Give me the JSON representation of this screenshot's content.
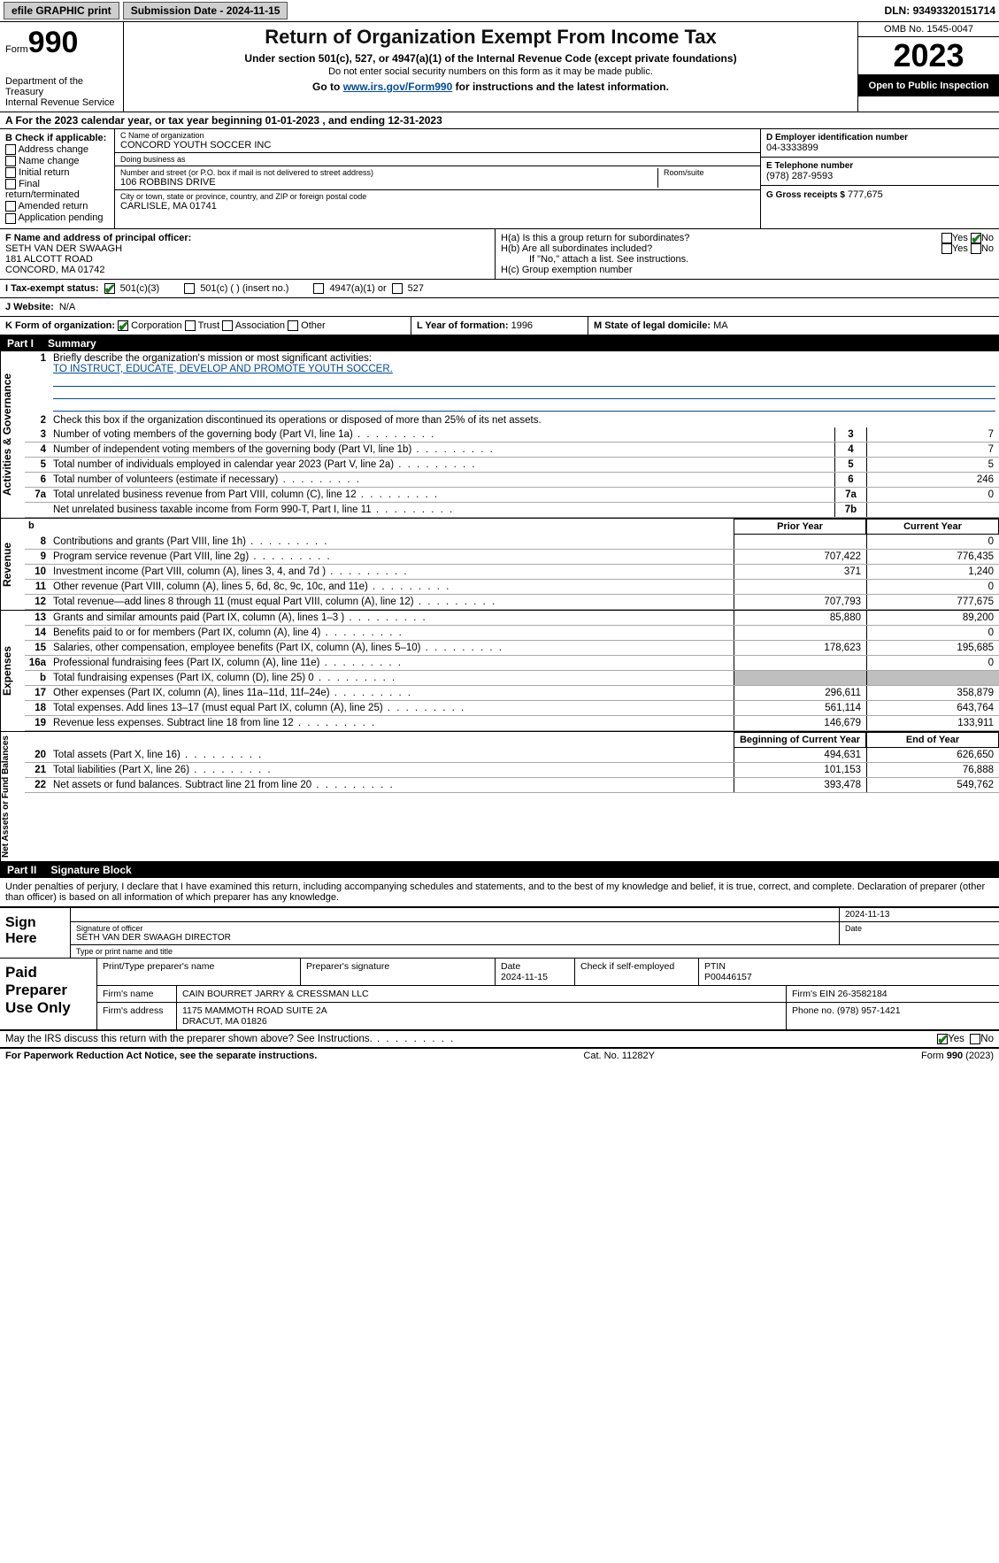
{
  "topbar": {
    "efile": "efile GRAPHIC print",
    "submission": "Submission Date - 2024-11-15",
    "dln_label": "DLN:",
    "dln": "93493320151714"
  },
  "header": {
    "form_word": "Form",
    "form_num": "990",
    "title": "Return of Organization Exempt From Income Tax",
    "sub1": "Under section 501(c), 527, or 4947(a)(1) of the Internal Revenue Code (except private foundations)",
    "sub2": "Do not enter social security numbers on this form as it may be made public.",
    "sub3_pre": "Go to ",
    "sub3_link": "www.irs.gov/Form990",
    "sub3_post": " for instructions and the latest information.",
    "dept": "Department of the Treasury",
    "irs": "Internal Revenue Service",
    "omb": "OMB No. 1545-0047",
    "year": "2023",
    "open": "Open to Public Inspection"
  },
  "lineA": "A For the 2023 calendar year, or tax year beginning 01-01-2023    , and ending 12-31-2023",
  "boxB": {
    "hdr": "B Check if applicable:",
    "opts": [
      "Address change",
      "Name change",
      "Initial return",
      "Final return/terminated",
      "Amended return",
      "Application pending"
    ]
  },
  "boxC": {
    "name_lbl": "C Name of organization",
    "name": "CONCORD YOUTH SOCCER INC",
    "dba_lbl": "Doing business as",
    "dba": "",
    "street_lbl": "Number and street (or P.O. box if mail is not delivered to street address)",
    "street": "106 ROBBINS DRIVE",
    "room_lbl": "Room/suite",
    "city_lbl": "City or town, state or province, country, and ZIP or foreign postal code",
    "city": "CARLISLE, MA  01741"
  },
  "boxD": {
    "lbl": "D Employer identification number",
    "val": "04-3333899"
  },
  "boxE": {
    "lbl": "E Telephone number",
    "val": "(978) 287-9593"
  },
  "boxG": {
    "lbl": "G Gross receipts $",
    "val": "777,675"
  },
  "boxF": {
    "lbl": "F  Name and address of principal officer:",
    "name": "SETH VAN DER SWAAGH",
    "addr1": "181 ALCOTT ROAD",
    "addr2": "CONCORD, MA  01742"
  },
  "boxH": {
    "a": "H(a)  Is this a group return for subordinates?",
    "b": "H(b)  Are all subordinates included?",
    "b_note": "If \"No,\" attach a list. See instructions.",
    "c": "H(c)  Group exemption number",
    "yes": "Yes",
    "no": "No"
  },
  "boxI": {
    "lbl": "I   Tax-exempt status:",
    "o1": "501(c)(3)",
    "o2": "501(c) (  ) (insert no.)",
    "o3": "4947(a)(1) or",
    "o4": "527"
  },
  "boxJ": {
    "lbl": "J   Website:",
    "val": "N/A"
  },
  "boxK": {
    "lbl": "K Form of organization:",
    "opts": [
      "Corporation",
      "Trust",
      "Association",
      "Other"
    ]
  },
  "boxL": {
    "lbl": "L Year of formation:",
    "val": "1996"
  },
  "boxM": {
    "lbl": "M State of legal domicile:",
    "val": "MA"
  },
  "part1": {
    "num": "Part I",
    "title": "Summary"
  },
  "mission": {
    "lbl": "Briefly describe the organization's mission or most significant activities:",
    "text": "TO INSTRUCT, EDUCATE, DEVELOP AND PROMOTE YOUTH SOCCER."
  },
  "line2": "Check this box      if the organization discontinued its operations or disposed of more than 25% of its net assets.",
  "gov": [
    {
      "n": "3",
      "d": "Number of voting members of the governing body (Part VI, line 1a)",
      "bn": "3",
      "v": "7"
    },
    {
      "n": "4",
      "d": "Number of independent voting members of the governing body (Part VI, line 1b)",
      "bn": "4",
      "v": "7"
    },
    {
      "n": "5",
      "d": "Total number of individuals employed in calendar year 2023 (Part V, line 2a)",
      "bn": "5",
      "v": "5"
    },
    {
      "n": "6",
      "d": "Total number of volunteers (estimate if necessary)",
      "bn": "6",
      "v": "246"
    },
    {
      "n": "7a",
      "d": "Total unrelated business revenue from Part VIII, column (C), line 12",
      "bn": "7a",
      "v": "0"
    },
    {
      "n": "",
      "d": "Net unrelated business taxable income from Form 990-T, Part I, line 11",
      "bn": "7b",
      "v": ""
    }
  ],
  "rev_hdr_b": "b",
  "col_prior": "Prior Year",
  "col_current": "Current Year",
  "col_begin": "Beginning of Current Year",
  "col_end": "End of Year",
  "revenue": [
    {
      "n": "8",
      "d": "Contributions and grants (Part VIII, line 1h)",
      "p": "",
      "c": "0"
    },
    {
      "n": "9",
      "d": "Program service revenue (Part VIII, line 2g)",
      "p": "707,422",
      "c": "776,435"
    },
    {
      "n": "10",
      "d": "Investment income (Part VIII, column (A), lines 3, 4, and 7d )",
      "p": "371",
      "c": "1,240"
    },
    {
      "n": "11",
      "d": "Other revenue (Part VIII, column (A), lines 5, 6d, 8c, 9c, 10c, and 11e)",
      "p": "",
      "c": "0"
    },
    {
      "n": "12",
      "d": "Total revenue—add lines 8 through 11 (must equal Part VIII, column (A), line 12)",
      "p": "707,793",
      "c": "777,675"
    }
  ],
  "expenses": [
    {
      "n": "13",
      "d": "Grants and similar amounts paid (Part IX, column (A), lines 1–3 )",
      "p": "85,880",
      "c": "89,200"
    },
    {
      "n": "14",
      "d": "Benefits paid to or for members (Part IX, column (A), line 4)",
      "p": "",
      "c": "0"
    },
    {
      "n": "15",
      "d": "Salaries, other compensation, employee benefits (Part IX, column (A), lines 5–10)",
      "p": "178,623",
      "c": "195,685"
    },
    {
      "n": "16a",
      "d": "Professional fundraising fees (Part IX, column (A), line 11e)",
      "p": "",
      "c": "0"
    },
    {
      "n": "b",
      "d": "Total fundraising expenses (Part IX, column (D), line 25) 0",
      "p": "shade",
      "c": "shade"
    },
    {
      "n": "17",
      "d": "Other expenses (Part IX, column (A), lines 11a–11d, 11f–24e)",
      "p": "296,611",
      "c": "358,879"
    },
    {
      "n": "18",
      "d": "Total expenses. Add lines 13–17 (must equal Part IX, column (A), line 25)",
      "p": "561,114",
      "c": "643,764"
    },
    {
      "n": "19",
      "d": "Revenue less expenses. Subtract line 18 from line 12",
      "p": "146,679",
      "c": "133,911"
    }
  ],
  "netassets": [
    {
      "n": "20",
      "d": "Total assets (Part X, line 16)",
      "p": "494,631",
      "c": "626,650"
    },
    {
      "n": "21",
      "d": "Total liabilities (Part X, line 26)",
      "p": "101,153",
      "c": "76,888"
    },
    {
      "n": "22",
      "d": "Net assets or fund balances. Subtract line 21 from line 20",
      "p": "393,478",
      "c": "549,762"
    }
  ],
  "side": {
    "gov": "Activities & Governance",
    "rev": "Revenue",
    "exp": "Expenses",
    "net": "Net Assets or Fund Balances"
  },
  "part2": {
    "num": "Part II",
    "title": "Signature Block"
  },
  "perjury": "Under penalties of perjury, I declare that I have examined this return, including accompanying schedules and statements, and to the best of my knowledge and belief, it is true, correct, and complete. Declaration of preparer (other than officer) is based on all information of which preparer has any knowledge.",
  "sign": {
    "here": "Sign Here",
    "sig_lbl": "Signature of officer",
    "date_lbl": "Date",
    "date": "2024-11-13",
    "name": "SETH VAN DER SWAAGH  DIRECTOR",
    "type_lbl": "Type or print name and title"
  },
  "prep": {
    "label": "Paid Preparer Use Only",
    "h1": "Print/Type preparer's name",
    "h2": "Preparer's signature",
    "h3": "Date",
    "date": "2024-11-15",
    "h4": "Check       if self-employed",
    "h5": "PTIN",
    "ptin": "P00446157",
    "firm_name_lbl": "Firm's name",
    "firm_name": "CAIN BOURRET JARRY & CRESSMAN LLC",
    "firm_ein_lbl": "Firm's EIN",
    "firm_ein": "26-3582184",
    "firm_addr_lbl": "Firm's address",
    "firm_addr1": "1175 MAMMOTH ROAD SUITE 2A",
    "firm_addr2": "DRACUT, MA  01826",
    "phone_lbl": "Phone no.",
    "phone": "(978) 957-1421"
  },
  "discuss": {
    "q": "May the IRS discuss this return with the preparer shown above? See Instructions.",
    "yes": "Yes",
    "no": "No"
  },
  "footer": {
    "left": "For Paperwork Reduction Act Notice, see the separate instructions.",
    "mid": "Cat. No. 11282Y",
    "right_pre": "Form ",
    "right_form": "990",
    "right_post": " (2023)"
  }
}
